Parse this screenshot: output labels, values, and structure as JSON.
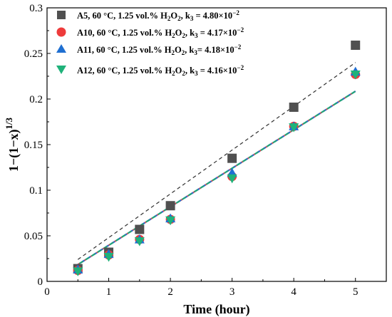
{
  "chart_data": {
    "type": "scatter",
    "xlabel": "Time (hour)",
    "ylabel": "1−(1−x)",
    "ylabel_sup": "1/3",
    "xlim": [
      0,
      5.5
    ],
    "ylim": [
      0,
      0.3
    ],
    "x_ticks": [
      0,
      1,
      2,
      3,
      4,
      5
    ],
    "y_ticks": [
      0,
      0.05,
      0.1,
      0.15,
      0.2,
      0.25,
      0.3
    ],
    "y_tick_labels": [
      "0",
      "0.05",
      "0.1",
      "0.15",
      "0.2",
      "0.25",
      "0.3"
    ],
    "grid": false,
    "legend_position": "top-left",
    "series": [
      {
        "name": "A5, 60 °C, 1.25 vol.% H2O2, k3 = 4.80×10−2",
        "legend": {
          "a": "A5, 60 °C, 1.25 vol.% H",
          "sub1": "2",
          "b": "O",
          "sub2": "2",
          "c": ", k",
          "sub3": "3",
          "d": " = 4.80×10",
          "sup": "−2"
        },
        "marker": "square",
        "color": "#505050",
        "fit_color": "#303030",
        "x": [
          0.5,
          1,
          1.5,
          2,
          3,
          4,
          5
        ],
        "y": [
          0.014,
          0.032,
          0.057,
          0.083,
          0.135,
          0.191,
          0.259
        ],
        "fit": {
          "x": [
            0.5,
            5
          ],
          "y": [
            0.024,
            0.24
          ]
        }
      },
      {
        "name": "A10, 60 °C, 1.25 vol.% H2O2, k3 = 4.17×10−2",
        "legend": {
          "a": "A10, 60 °C, 1.25 vol.% H",
          "sub1": "2",
          "b": "O",
          "sub2": "2",
          "c": ", k",
          "sub3": "3",
          "d": " = 4.17×10",
          "sup": "−2"
        },
        "marker": "circle",
        "color": "#ee3b3b",
        "fit_color": "#e05050",
        "x": [
          0.5,
          1,
          1.5,
          2,
          3,
          4,
          5
        ],
        "y": [
          0.012,
          0.029,
          0.046,
          0.068,
          0.115,
          0.17,
          0.227
        ],
        "fit": {
          "x": [
            0.5,
            5
          ],
          "y": [
            0.0185,
            0.2085
          ]
        }
      },
      {
        "name": "A11, 60 °C, 1.25 vol.% H2O2, k3 = 4.18×10−2",
        "legend": {
          "a": "A11, 60 °C, 1.25 vol.% H",
          "sub1": "2",
          "b": "O",
          "sub2": "2",
          "c": ", k",
          "sub3": "3",
          "d": "= 4.18×10",
          "sup": "−2"
        },
        "marker": "triangle-up",
        "color": "#1f6fd1",
        "fit_color": "#2f6fd0",
        "x": [
          0.5,
          1,
          1.5,
          2,
          3,
          4,
          5
        ],
        "y": [
          0.013,
          0.03,
          0.046,
          0.069,
          0.119,
          0.17,
          0.23
        ],
        "fit": {
          "x": [
            0.5,
            5
          ],
          "y": [
            0.0185,
            0.2085
          ]
        }
      },
      {
        "name": "A12, 60 °C, 1.25 vol.% H2O2, k3 = 4.16×10−2",
        "legend": {
          "a": "A12, 60 °C, 1.25 vol.% H",
          "sub1": "2",
          "b": "O",
          "sub2": "2",
          "c": ", k",
          "sub3": "3",
          "d": " = 4.16×10",
          "sup": "−2"
        },
        "marker": "triangle-down",
        "color": "#1fb27a",
        "fit_color": "#22a37a",
        "x": [
          0.5,
          1,
          1.5,
          2,
          3,
          4,
          5
        ],
        "y": [
          0.011,
          0.027,
          0.044,
          0.067,
          0.113,
          0.169,
          0.227
        ],
        "fit": {
          "x": [
            0.5,
            5
          ],
          "y": [
            0.0185,
            0.2085
          ]
        }
      }
    ]
  }
}
